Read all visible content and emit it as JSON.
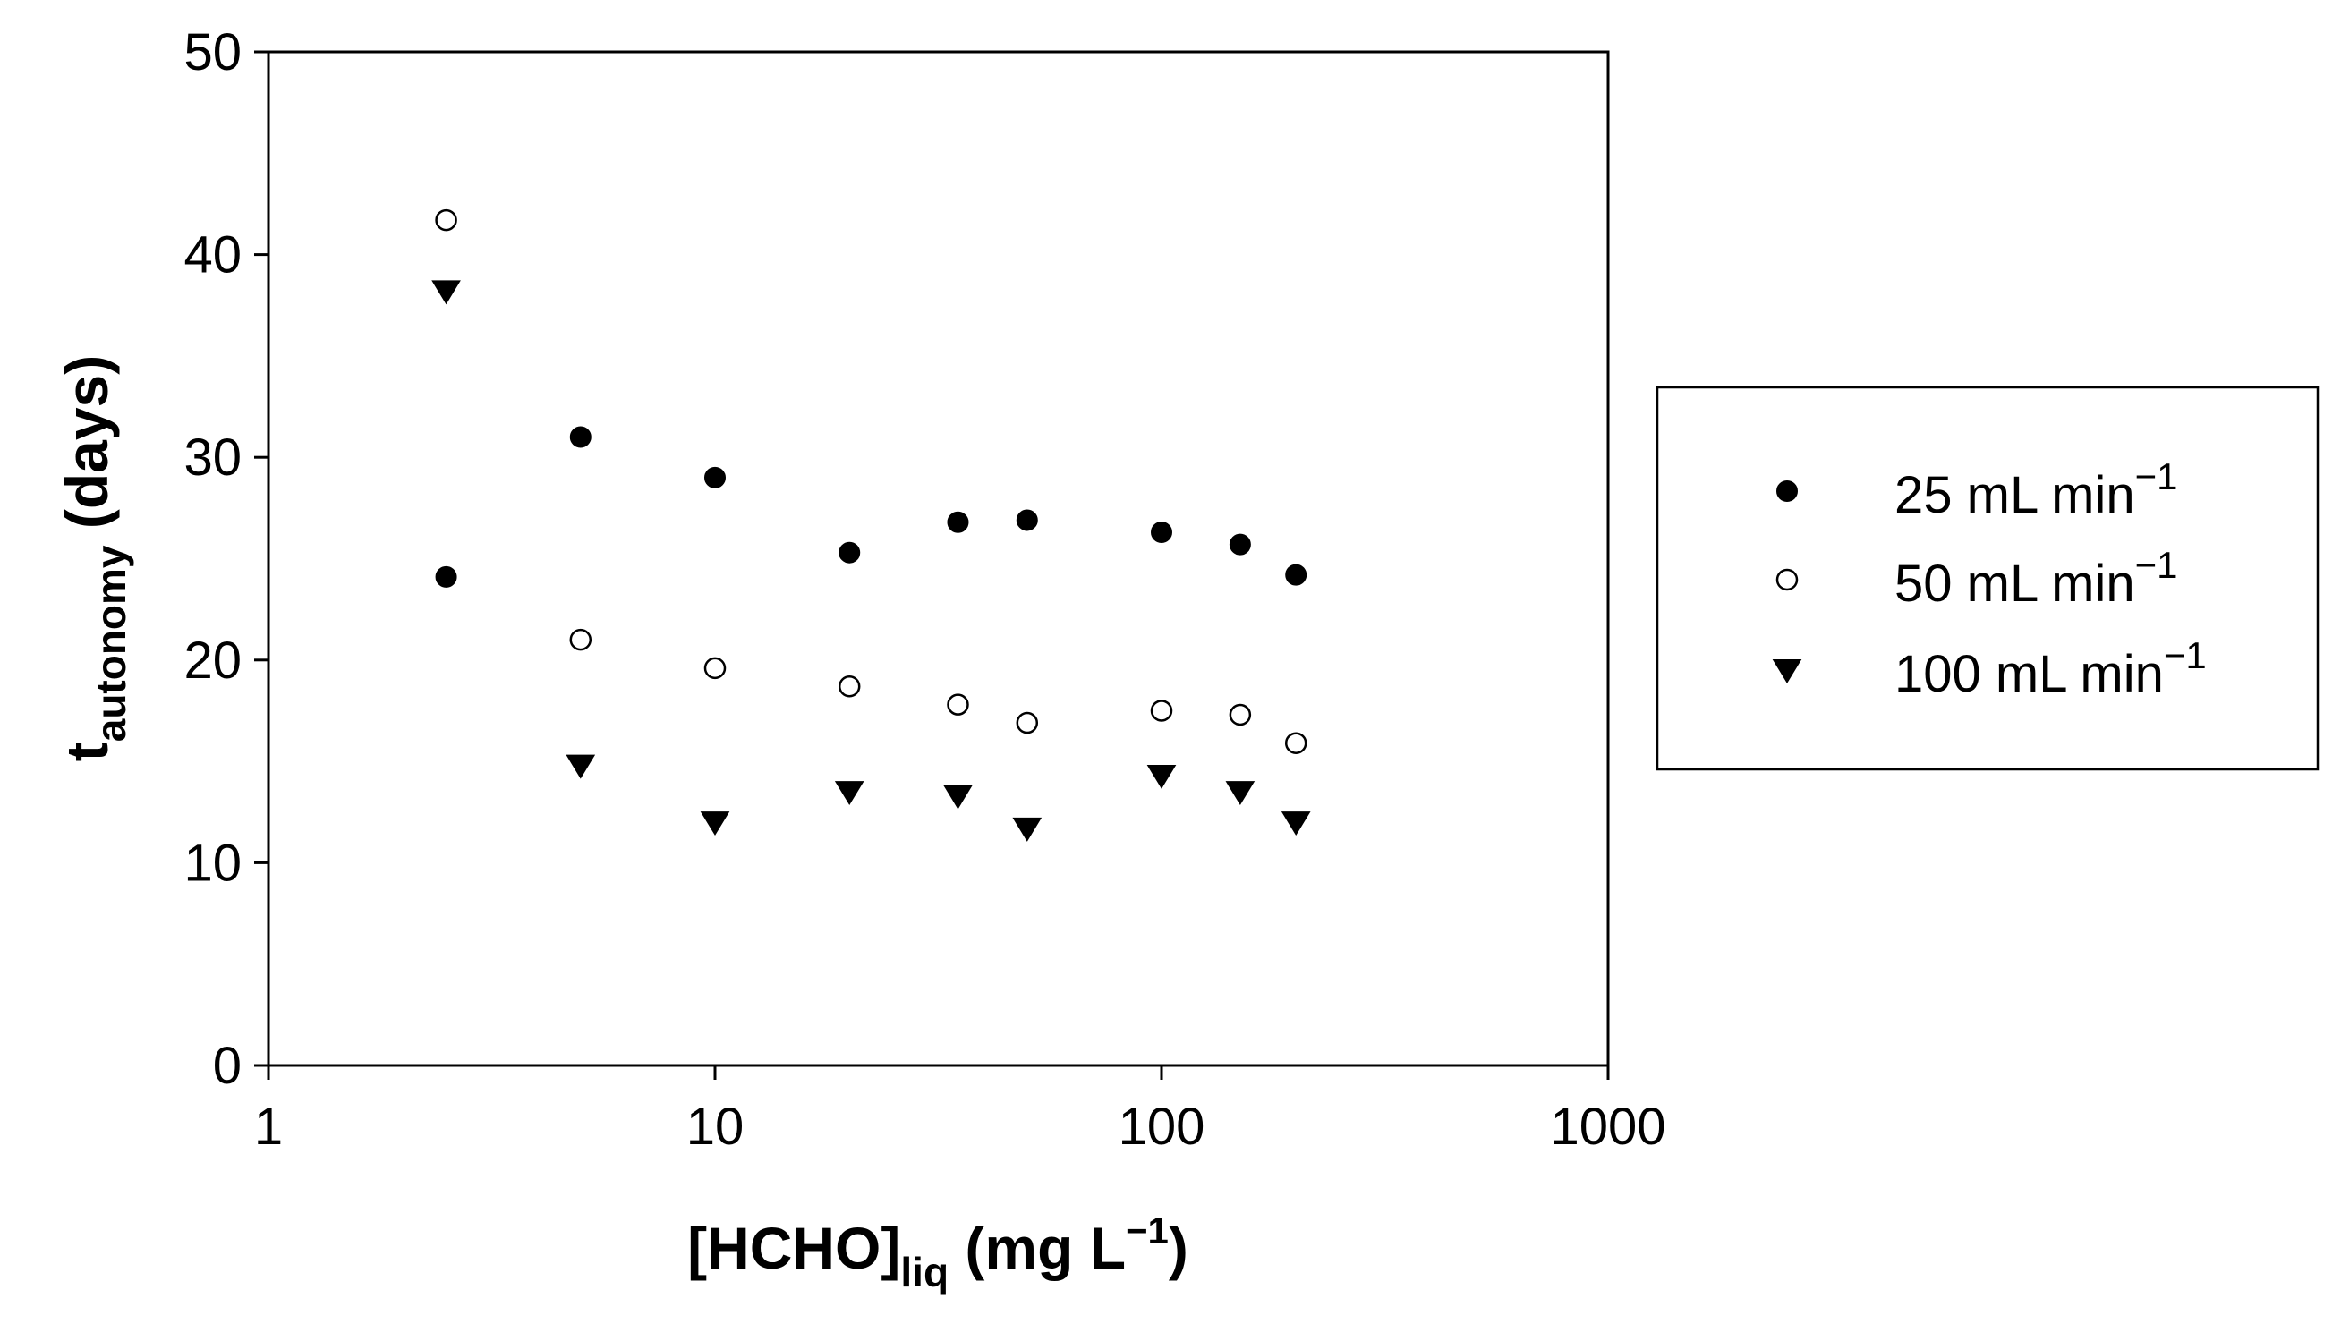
{
  "chart_data": {
    "type": "scatter",
    "xscale": "log",
    "xlim": [
      1,
      1000
    ],
    "ylim": [
      0,
      50
    ],
    "xticks": [
      1,
      10,
      100,
      1000
    ],
    "xtick_labels": [
      "1",
      "10",
      "100",
      "1000"
    ],
    "yticks": [
      0,
      10,
      20,
      30,
      40,
      50
    ],
    "ytick_labels": [
      "0",
      "10",
      "20",
      "30",
      "40",
      "50"
    ],
    "xlabel": {
      "main": "[HCHO]",
      "sub": "liq",
      "after": " (mg L",
      "sup": "−1",
      "close": ")"
    },
    "ylabel": {
      "main": "t",
      "sub": "autonomy",
      "after": " (days)"
    },
    "grid": false,
    "legend_position": "right",
    "series": [
      {
        "name": "25 mL min",
        "name_sup": "−1",
        "marker": "filled-circle",
        "color": "#000000",
        "x": [
          2.5,
          5,
          10,
          20,
          35,
          50,
          100,
          150,
          200
        ],
        "y": [
          24.1,
          31.0,
          29.0,
          25.3,
          26.8,
          26.9,
          26.3,
          25.7,
          24.2
        ]
      },
      {
        "name": "50 mL min",
        "name_sup": "−1",
        "marker": "open-circle",
        "color": "#000000",
        "x": [
          2.5,
          5,
          10,
          20,
          35,
          50,
          100,
          150,
          200
        ],
        "y": [
          41.7,
          21.0,
          19.6,
          18.7,
          17.8,
          16.9,
          17.5,
          17.3,
          15.9
        ]
      },
      {
        "name": "100 mL min",
        "name_sup": "−1",
        "marker": "filled-triangle-down",
        "color": "#000000",
        "x": [
          2.5,
          5,
          10,
          20,
          35,
          50,
          100,
          150,
          200
        ],
        "y": [
          38.2,
          14.8,
          12.0,
          13.5,
          13.3,
          11.7,
          14.3,
          13.5,
          12.0
        ]
      }
    ]
  }
}
